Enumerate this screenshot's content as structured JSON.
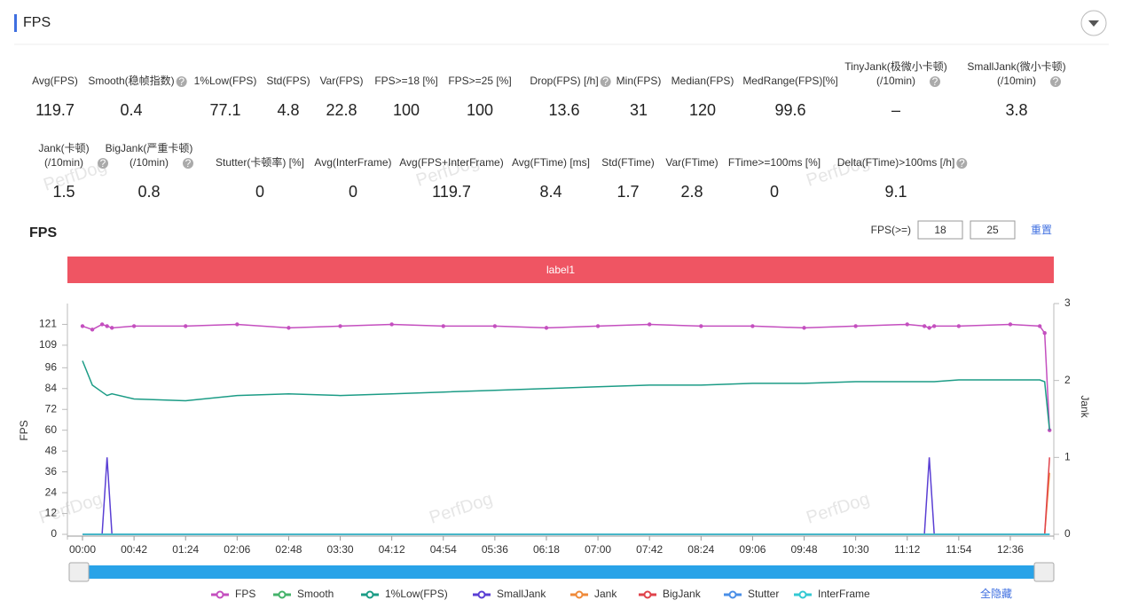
{
  "header": {
    "title": "FPS"
  },
  "watermark": "PerfDog",
  "stats": [
    [
      {
        "label": [
          "Avg(FPS)"
        ],
        "value": "119.7"
      },
      {
        "label": [
          "Smooth(稳帧指数)"
        ],
        "value": "0.4",
        "help": true
      },
      {
        "label": [
          "1%Low(FPS)"
        ],
        "value": "77.1"
      },
      {
        "label": [
          "Std(FPS)"
        ],
        "value": "4.8"
      },
      {
        "label": [
          "Var(FPS)"
        ],
        "value": "22.8"
      },
      {
        "label": [
          "FPS>=18 [%]"
        ],
        "value": "100"
      },
      {
        "label": [
          "FPS>=25 [%]"
        ],
        "value": "100"
      },
      {
        "label": [
          "Drop(FPS) [/h]"
        ],
        "value": "13.6",
        "help": true
      },
      {
        "label": [
          "Min(FPS)"
        ],
        "value": "31"
      },
      {
        "label": [
          "Median(FPS)"
        ],
        "value": "120"
      },
      {
        "label": [
          "MedRange(FPS)[%]"
        ],
        "value": "99.6"
      },
      {
        "label": [
          "TinyJank(极微小卡顿)",
          "(/10min)"
        ],
        "value": "–",
        "help": true
      },
      {
        "label": [
          "SmallJank(微小卡顿)",
          "(/10min)"
        ],
        "value": "3.8",
        "help": true
      }
    ],
    [
      {
        "label": [
          "Jank(卡顿)",
          "(/10min)"
        ],
        "value": "1.5",
        "help": true
      },
      {
        "label": [
          "BigJank(严重卡顿)",
          "(/10min)"
        ],
        "value": "0.8",
        "help": true
      },
      {
        "label": [
          "Stutter(卡顿率) [%]"
        ],
        "value": "0"
      },
      {
        "label": [
          "Avg(InterFrame)"
        ],
        "value": "0"
      },
      {
        "label": [
          "Avg(FPS+InterFrame)"
        ],
        "value": "119.7"
      },
      {
        "label": [
          "Avg(FTime) [ms]"
        ],
        "value": "8.4"
      },
      {
        "label": [
          "Std(FTime)"
        ],
        "value": "1.7"
      },
      {
        "label": [
          "Var(FTime)"
        ],
        "value": "2.8"
      },
      {
        "label": [
          "FTime>=100ms [%]"
        ],
        "value": "0"
      },
      {
        "label": [
          "Delta(FTime)>100ms [/h]"
        ],
        "value": "9.1",
        "help": true
      }
    ]
  ],
  "controls": {
    "threshold_label": "FPS(>=)",
    "threshold_values": [
      "18",
      "25"
    ],
    "reset": "重置",
    "hide_all": "全隐藏"
  },
  "chart_data": {
    "type": "line",
    "title": "FPS",
    "segment_label": "label1",
    "y_label": "FPS",
    "y2_label": "Jank",
    "grid": false,
    "x": [
      0,
      8,
      16,
      20,
      24,
      42,
      84,
      126,
      168,
      210,
      252,
      294,
      336,
      378,
      420,
      462,
      504,
      546,
      588,
      630,
      672,
      686,
      690,
      694,
      714,
      756,
      780,
      784,
      788
    ],
    "xlim": [
      0,
      790
    ],
    "xticks": [
      {
        "value": 0,
        "label": "00:00"
      },
      {
        "value": 42,
        "label": "00:42"
      },
      {
        "value": 84,
        "label": "01:24"
      },
      {
        "value": 126,
        "label": "02:06"
      },
      {
        "value": 168,
        "label": "02:48"
      },
      {
        "value": 210,
        "label": "03:30"
      },
      {
        "value": 252,
        "label": "04:12"
      },
      {
        "value": 294,
        "label": "04:54"
      },
      {
        "value": 336,
        "label": "05:36"
      },
      {
        "value": 378,
        "label": "06:18"
      },
      {
        "value": 420,
        "label": "07:00"
      },
      {
        "value": 462,
        "label": "07:42"
      },
      {
        "value": 504,
        "label": "08:24"
      },
      {
        "value": 546,
        "label": "09:06"
      },
      {
        "value": 588,
        "label": "09:48"
      },
      {
        "value": 630,
        "label": "10:30"
      },
      {
        "value": 672,
        "label": "11:12"
      },
      {
        "value": 714,
        "label": "11:54"
      },
      {
        "value": 756,
        "label": "12:36"
      }
    ],
    "ylim": [
      0,
      133
    ],
    "yticks": [
      0,
      12,
      24,
      36,
      48,
      60,
      72,
      84,
      96,
      109,
      121
    ],
    "y2lim": [
      0,
      3
    ],
    "y2ticks": [
      0,
      1,
      2,
      3
    ],
    "series": [
      {
        "name": "FPS",
        "color": "#c44fbf",
        "marker": true,
        "values": [
          120,
          118,
          121,
          120,
          119,
          120,
          120,
          121,
          119,
          120,
          121,
          120,
          120,
          119,
          120,
          121,
          120,
          120,
          119,
          120,
          121,
          120,
          119,
          120,
          120,
          121,
          120,
          116,
          60
        ]
      },
      {
        "name": "Smooth",
        "color": "#45b36b",
        "values": [
          0,
          0,
          0,
          0,
          0,
          0,
          0,
          0,
          0,
          0,
          0,
          0,
          0,
          0,
          0,
          0,
          0,
          0,
          0,
          0,
          0,
          0,
          0,
          0,
          0,
          0,
          0,
          0,
          0
        ]
      },
      {
        "name": "1%Low(FPS)",
        "color": "#1c9c86",
        "values": [
          100,
          86,
          82,
          80,
          81,
          78,
          77,
          80,
          81,
          80,
          81,
          82,
          83,
          84,
          85,
          86,
          86,
          87,
          87,
          88,
          88,
          88,
          88,
          88,
          89,
          89,
          89,
          88,
          60
        ]
      },
      {
        "name": "SmallJank",
        "color": "#5a3fd4",
        "axis": "y2",
        "values": [
          0,
          0,
          0,
          1,
          0,
          0,
          0,
          0,
          0,
          0,
          0,
          0,
          0,
          0,
          0,
          0,
          0,
          0,
          0,
          0,
          0,
          0,
          1,
          0,
          0,
          0,
          0,
          0,
          0
        ]
      },
      {
        "name": "Jank",
        "color": "#ef8a3a",
        "axis": "y2",
        "values": [
          0,
          0,
          0,
          0,
          0,
          0,
          0,
          0,
          0,
          0,
          0,
          0,
          0,
          0,
          0,
          0,
          0,
          0,
          0,
          0,
          0,
          0,
          0,
          0,
          0,
          0,
          0,
          0,
          0.8
        ]
      },
      {
        "name": "BigJank",
        "color": "#e0434b",
        "axis": "y2",
        "values": [
          0,
          0,
          0,
          0,
          0,
          0,
          0,
          0,
          0,
          0,
          0,
          0,
          0,
          0,
          0,
          0,
          0,
          0,
          0,
          0,
          0,
          0,
          0,
          0,
          0,
          0,
          0,
          0,
          1
        ]
      },
      {
        "name": "Stutter",
        "color": "#4a8fe7",
        "values": [
          0,
          0,
          0,
          0,
          0,
          0,
          0,
          0,
          0,
          0,
          0,
          0,
          0,
          0,
          0,
          0,
          0,
          0,
          0,
          0,
          0,
          0,
          0,
          0,
          0,
          0,
          0,
          0,
          0
        ]
      },
      {
        "name": "InterFrame",
        "color": "#33c9d3",
        "values": [
          0,
          0,
          0,
          0,
          0,
          0,
          0,
          0,
          0,
          0,
          0,
          0,
          0,
          0,
          0,
          0,
          0,
          0,
          0,
          0,
          0,
          0,
          0,
          0,
          0,
          0,
          0,
          0,
          0
        ]
      }
    ]
  }
}
